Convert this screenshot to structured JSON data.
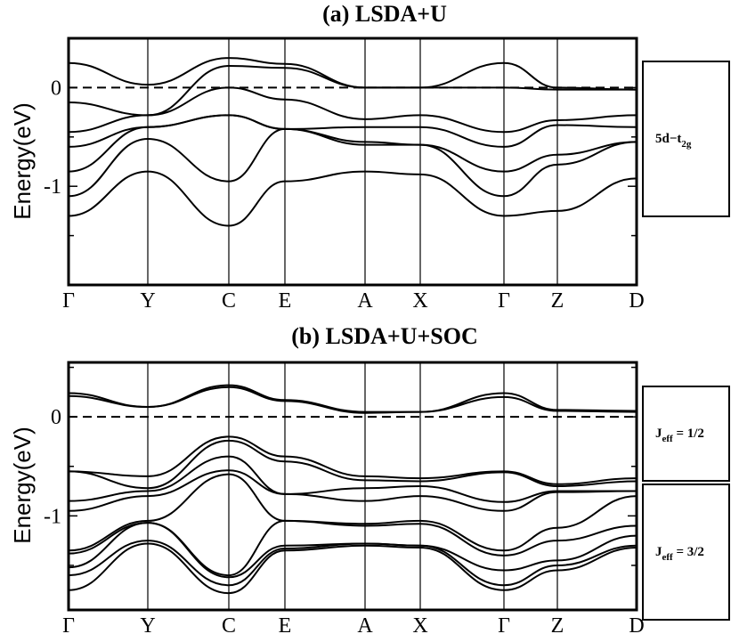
{
  "chart_data": [
    {
      "type": "line",
      "title": "(a) LSDA+U",
      "ylabel": "Energy(eV)",
      "ylim": [
        -2,
        0.5
      ],
      "yticks": [
        {
          "v": 0,
          "label": "0"
        },
        {
          "v": -1,
          "label": "-1"
        }
      ],
      "kpoints": [
        "Γ",
        "Y",
        "C",
        "E",
        "A",
        "X",
        "Γ",
        "Z",
        "D"
      ],
      "fermi_level": 0,
      "legend": [
        {
          "main": "5d−t",
          "sub": "2g",
          "rest": ""
        }
      ],
      "series": [
        {
          "y": [
            0.25,
            0.03,
            0.3,
            0.24,
            0.0,
            0.0,
            0.25,
            0.0,
            -0.02
          ]
        },
        {
          "y": [
            -0.15,
            -0.28,
            0.22,
            0.2,
            0.0,
            0.0,
            0.0,
            -0.02,
            -0.02
          ]
        },
        {
          "y": [
            -0.45,
            -0.28,
            0.0,
            -0.12,
            -0.32,
            -0.28,
            -0.45,
            -0.33,
            -0.28
          ]
        },
        {
          "y": [
            -0.6,
            -0.4,
            -0.28,
            -0.42,
            -0.4,
            -0.4,
            -0.6,
            -0.38,
            -0.4
          ]
        },
        {
          "y": [
            -0.85,
            -0.4,
            -0.28,
            -0.42,
            -0.55,
            -0.58,
            -0.85,
            -0.68,
            -0.55
          ]
        },
        {
          "y": [
            -1.1,
            -0.52,
            -0.95,
            -0.42,
            -0.58,
            -0.58,
            -1.1,
            -0.78,
            -0.55
          ]
        },
        {
          "y": [
            -1.3,
            -0.85,
            -1.4,
            -0.95,
            -0.85,
            -0.88,
            -1.3,
            -1.25,
            -0.92
          ]
        }
      ]
    },
    {
      "type": "line",
      "title": "(b) LSDA+U+SOC",
      "ylabel": "Energy(eV)",
      "ylim": [
        -1.95,
        0.55
      ],
      "yticks": [
        {
          "v": 0,
          "label": "0"
        },
        {
          "v": -1,
          "label": "-1"
        }
      ],
      "kpoints": [
        "Γ",
        "Y",
        "C",
        "E",
        "A",
        "X",
        "Γ",
        "Z",
        "D"
      ],
      "fermi_level": 0,
      "legend": [
        {
          "main": "J",
          "sub": "eff",
          "rest": " = 1/2"
        },
        {
          "main": "J",
          "sub": "eff",
          "rest": " = 3/2"
        }
      ],
      "series": [
        {
          "y": [
            0.24,
            0.1,
            0.32,
            0.17,
            0.05,
            0.05,
            0.24,
            0.07,
            0.06
          ]
        },
        {
          "y": [
            0.21,
            0.1,
            0.3,
            0.16,
            0.04,
            0.05,
            0.2,
            0.06,
            0.05
          ]
        },
        {
          "y": [
            -0.55,
            -0.6,
            -0.2,
            -0.4,
            -0.6,
            -0.62,
            -0.55,
            -0.68,
            -0.62
          ]
        },
        {
          "y": [
            -0.55,
            -0.72,
            -0.24,
            -0.45,
            -0.64,
            -0.65,
            -0.56,
            -0.7,
            -0.65
          ]
        },
        {
          "y": [
            -0.85,
            -0.75,
            -0.4,
            -0.78,
            -0.72,
            -0.7,
            -0.86,
            -0.75,
            -0.75
          ]
        },
        {
          "y": [
            -0.95,
            -0.8,
            -0.54,
            -0.78,
            -0.85,
            -0.8,
            -0.95,
            -0.76,
            -0.75
          ]
        },
        {
          "y": [
            -1.35,
            -1.05,
            -0.58,
            -1.05,
            -1.08,
            -1.05,
            -1.35,
            -1.12,
            -0.8
          ]
        },
        {
          "y": [
            -1.38,
            -1.07,
            -1.6,
            -1.05,
            -1.1,
            -1.08,
            -1.4,
            -1.25,
            -1.1
          ]
        },
        {
          "y": [
            -1.52,
            -1.07,
            -1.62,
            -1.3,
            -1.28,
            -1.3,
            -1.55,
            -1.45,
            -1.2
          ]
        },
        {
          "y": [
            -1.6,
            -1.25,
            -1.7,
            -1.33,
            -1.28,
            -1.3,
            -1.7,
            -1.5,
            -1.3
          ]
        },
        {
          "y": [
            -1.75,
            -1.28,
            -1.78,
            -1.35,
            -1.3,
            -1.32,
            -1.75,
            -1.55,
            -1.32
          ]
        }
      ]
    }
  ]
}
